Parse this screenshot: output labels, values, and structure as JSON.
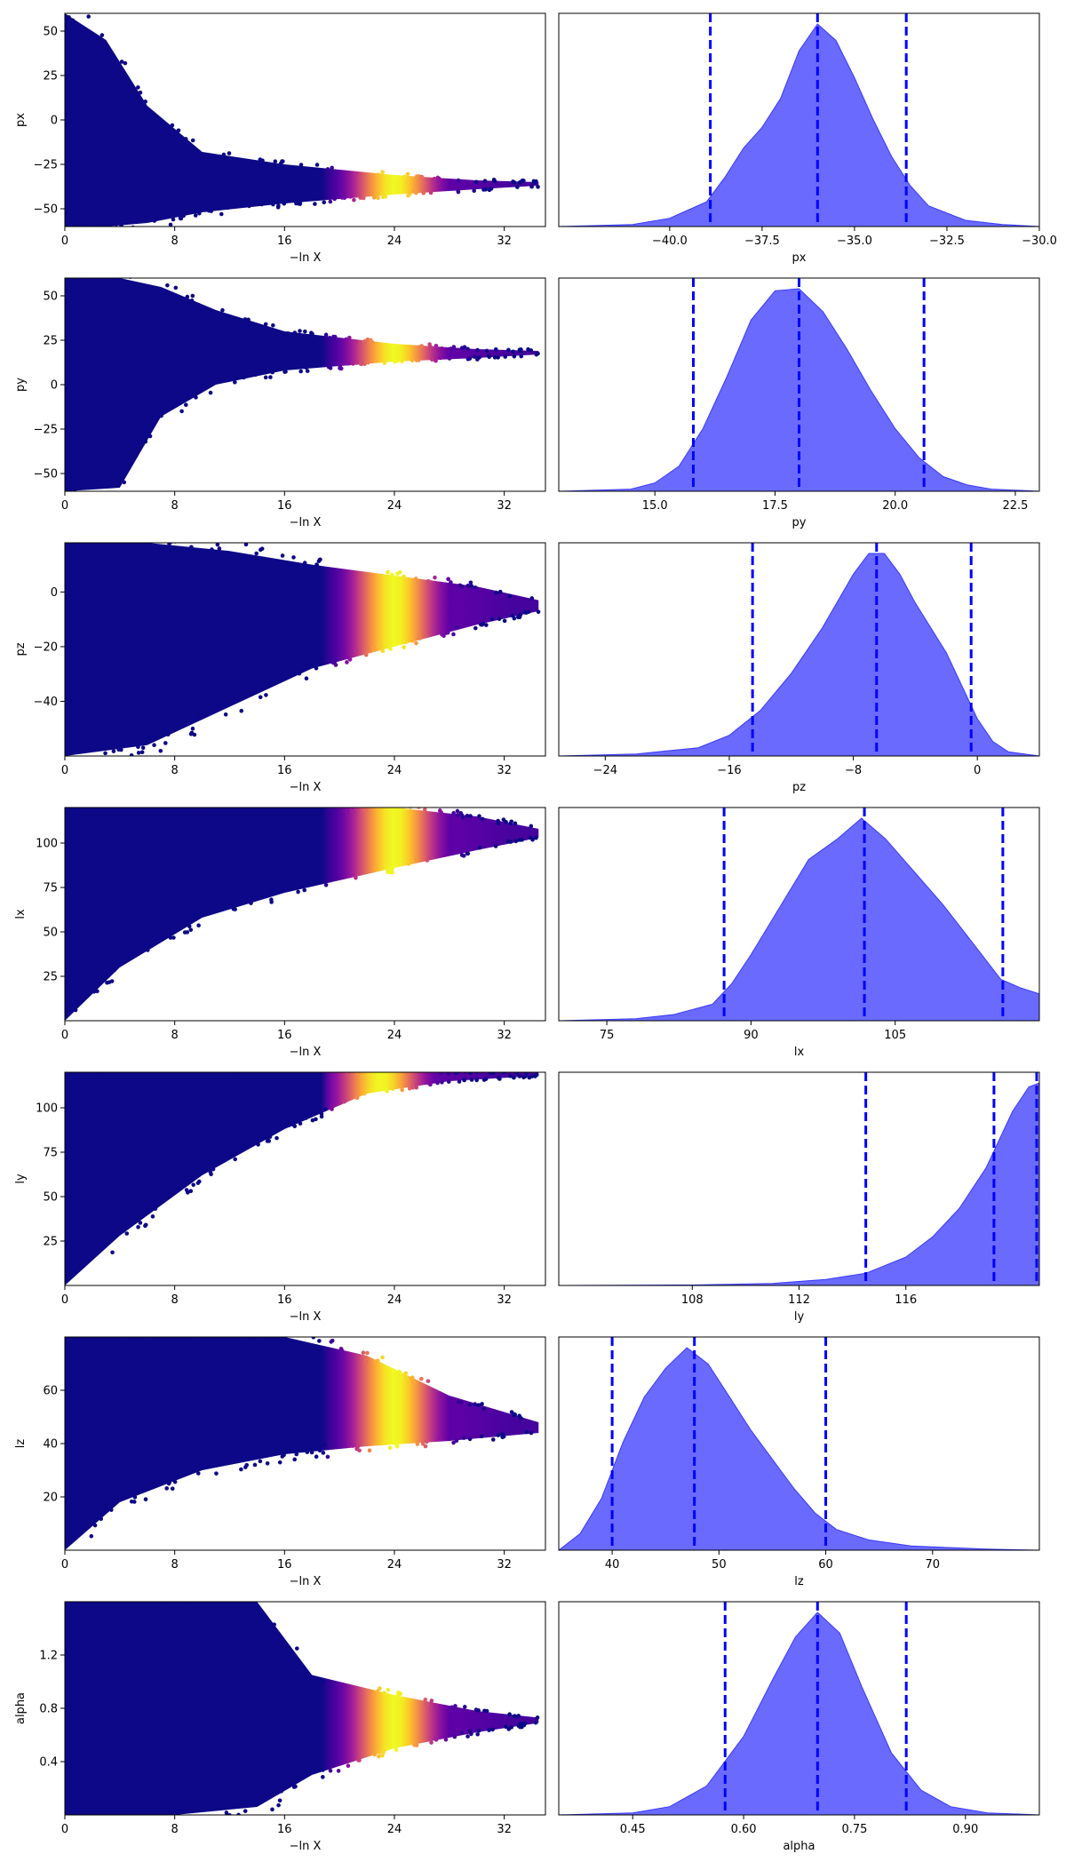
{
  "figure": {
    "shared_trace_xlabel": "−ln X",
    "trace_color_scale": [
      "#0d0887",
      "#5c01a6",
      "#9c179e",
      "#cc4778",
      "#ed7953",
      "#fdb42f",
      "#f0f921"
    ],
    "posterior_fill_color": "#5a5aff",
    "quantile_line_color": "#0000ff"
  },
  "chart_data": [
    {
      "type": "scatter",
      "parameter": "px",
      "panel": "trace",
      "xlabel": "−ln X",
      "ylabel": "px",
      "xlim": [
        0,
        35
      ],
      "ylim": [
        -60,
        60
      ],
      "xticks": [
        0,
        8,
        16,
        24,
        32
      ],
      "yticks": [
        -50,
        -25,
        0,
        25,
        50
      ],
      "envelope": [
        {
          "x": 0,
          "lo": -60,
          "hi": 60
        },
        {
          "x": 3,
          "lo": -60,
          "hi": 45
        },
        {
          "x": 6,
          "lo": -58,
          "hi": 8
        },
        {
          "x": 10,
          "lo": -52,
          "hi": -18
        },
        {
          "x": 16,
          "lo": -47,
          "hi": -25
        },
        {
          "x": 24,
          "lo": -42,
          "hi": -31
        },
        {
          "x": 30,
          "lo": -39,
          "hi": -34
        },
        {
          "x": 34.5,
          "lo": -37,
          "hi": -35
        }
      ],
      "bright_peak_x": 24
    },
    {
      "type": "area",
      "parameter": "px",
      "panel": "posterior",
      "xlabel": "px",
      "xlim": [
        -43,
        -30
      ],
      "xticks": [
        -40.0,
        -37.5,
        -35.0,
        -32.5,
        -30.0
      ],
      "xtick_labels": [
        "−40.0",
        "−37.5",
        "−35.0",
        "−32.5",
        "−30.0"
      ],
      "quantiles": [
        -38.9,
        -36.0,
        -33.6
      ],
      "density": [
        {
          "x": -43,
          "y": 0
        },
        {
          "x": -41,
          "y": 0.01
        },
        {
          "x": -40,
          "y": 0.04
        },
        {
          "x": -39,
          "y": 0.12
        },
        {
          "x": -38.5,
          "y": 0.24
        },
        {
          "x": -38,
          "y": 0.38
        },
        {
          "x": -37.5,
          "y": 0.48
        },
        {
          "x": -37,
          "y": 0.62
        },
        {
          "x": -36.5,
          "y": 0.85
        },
        {
          "x": -36,
          "y": 0.98
        },
        {
          "x": -35.5,
          "y": 0.9
        },
        {
          "x": -35,
          "y": 0.72
        },
        {
          "x": -34.5,
          "y": 0.52
        },
        {
          "x": -34,
          "y": 0.34
        },
        {
          "x": -33.5,
          "y": 0.2
        },
        {
          "x": -33,
          "y": 0.1
        },
        {
          "x": -32,
          "y": 0.03
        },
        {
          "x": -31,
          "y": 0.01
        },
        {
          "x": -30,
          "y": 0
        }
      ]
    },
    {
      "type": "scatter",
      "parameter": "py",
      "panel": "trace",
      "xlabel": "−ln X",
      "ylabel": "py",
      "xlim": [
        0,
        35
      ],
      "ylim": [
        -60,
        60
      ],
      "xticks": [
        0,
        8,
        16,
        24,
        32
      ],
      "yticks": [
        -50,
        -25,
        0,
        25,
        50
      ],
      "envelope": [
        {
          "x": 0,
          "lo": -60,
          "hi": 60
        },
        {
          "x": 4,
          "lo": -58,
          "hi": 60
        },
        {
          "x": 7,
          "lo": -18,
          "hi": 55
        },
        {
          "x": 11,
          "lo": 0,
          "hi": 42
        },
        {
          "x": 16,
          "lo": 8,
          "hi": 30
        },
        {
          "x": 24,
          "lo": 13,
          "hi": 23
        },
        {
          "x": 30,
          "lo": 15,
          "hi": 20
        },
        {
          "x": 34.5,
          "lo": 17,
          "hi": 19
        }
      ],
      "bright_peak_x": 24
    },
    {
      "type": "area",
      "parameter": "py",
      "panel": "posterior",
      "xlabel": "py",
      "xlim": [
        13,
        23
      ],
      "xticks": [
        15.0,
        17.5,
        20.0,
        22.5
      ],
      "xtick_labels": [
        "15.0",
        "17.5",
        "20.0",
        "22.5"
      ],
      "quantiles": [
        15.8,
        18.0,
        20.6
      ],
      "density": [
        {
          "x": 13,
          "y": 0
        },
        {
          "x": 14.5,
          "y": 0.01
        },
        {
          "x": 15,
          "y": 0.04
        },
        {
          "x": 15.5,
          "y": 0.12
        },
        {
          "x": 16,
          "y": 0.3
        },
        {
          "x": 16.5,
          "y": 0.55
        },
        {
          "x": 17,
          "y": 0.82
        },
        {
          "x": 17.5,
          "y": 0.96
        },
        {
          "x": 18,
          "y": 0.97
        },
        {
          "x": 18.5,
          "y": 0.86
        },
        {
          "x": 19,
          "y": 0.68
        },
        {
          "x": 19.5,
          "y": 0.48
        },
        {
          "x": 20,
          "y": 0.3
        },
        {
          "x": 20.5,
          "y": 0.16
        },
        {
          "x": 21,
          "y": 0.07
        },
        {
          "x": 21.5,
          "y": 0.03
        },
        {
          "x": 22,
          "y": 0.01
        },
        {
          "x": 23,
          "y": 0
        }
      ]
    },
    {
      "type": "scatter",
      "parameter": "pz",
      "panel": "trace",
      "xlabel": "−ln X",
      "ylabel": "pz",
      "xlim": [
        0,
        35
      ],
      "ylim": [
        -60,
        18
      ],
      "xticks": [
        0,
        8,
        16,
        24,
        32
      ],
      "yticks": [
        -40,
        -20,
        0
      ],
      "envelope": [
        {
          "x": 0,
          "lo": -60,
          "hi": 18
        },
        {
          "x": 6,
          "lo": -56,
          "hi": 18
        },
        {
          "x": 12,
          "lo": -42,
          "hi": 15
        },
        {
          "x": 18,
          "lo": -28,
          "hi": 10
        },
        {
          "x": 24,
          "lo": -20,
          "hi": 6
        },
        {
          "x": 30,
          "lo": -12,
          "hi": 2
        },
        {
          "x": 34.5,
          "lo": -7,
          "hi": -3
        }
      ],
      "bright_peak_x": 24
    },
    {
      "type": "area",
      "parameter": "pz",
      "panel": "posterior",
      "xlabel": "pz",
      "xlim": [
        -27,
        4
      ],
      "xticks": [
        -24,
        -16,
        -8,
        0
      ],
      "xtick_labels": [
        "−24",
        "−16",
        "−8",
        "0"
      ],
      "quantiles": [
        -14.5,
        -6.5,
        -0.4
      ],
      "density": [
        {
          "x": -27,
          "y": 0
        },
        {
          "x": -22,
          "y": 0.01
        },
        {
          "x": -18,
          "y": 0.04
        },
        {
          "x": -16,
          "y": 0.1
        },
        {
          "x": -14,
          "y": 0.22
        },
        {
          "x": -12,
          "y": 0.4
        },
        {
          "x": -10,
          "y": 0.62
        },
        {
          "x": -8,
          "y": 0.88
        },
        {
          "x": -7,
          "y": 0.98
        },
        {
          "x": -6,
          "y": 0.98
        },
        {
          "x": -5,
          "y": 0.88
        },
        {
          "x": -4,
          "y": 0.74
        },
        {
          "x": -2,
          "y": 0.5
        },
        {
          "x": 0,
          "y": 0.18
        },
        {
          "x": 1,
          "y": 0.07
        },
        {
          "x": 2,
          "y": 0.02
        },
        {
          "x": 4,
          "y": 0
        }
      ]
    },
    {
      "type": "scatter",
      "parameter": "lx",
      "panel": "trace",
      "xlabel": "−ln X",
      "ylabel": "lx",
      "xlim": [
        0,
        35
      ],
      "ylim": [
        0,
        120
      ],
      "xticks": [
        0,
        8,
        16,
        24,
        32
      ],
      "yticks": [
        25,
        50,
        75,
        100
      ],
      "envelope": [
        {
          "x": 0,
          "lo": 0,
          "hi": 120
        },
        {
          "x": 4,
          "lo": 30,
          "hi": 120
        },
        {
          "x": 10,
          "lo": 58,
          "hi": 120
        },
        {
          "x": 16,
          "lo": 72,
          "hi": 120
        },
        {
          "x": 24,
          "lo": 86,
          "hi": 120
        },
        {
          "x": 30,
          "lo": 96,
          "hi": 115
        },
        {
          "x": 34.5,
          "lo": 103,
          "hi": 108
        }
      ],
      "bright_peak_x": 24
    },
    {
      "type": "area",
      "parameter": "lx",
      "panel": "posterior",
      "xlabel": "lx",
      "xlim": [
        70,
        120
      ],
      "xticks": [
        75,
        90,
        105
      ],
      "xtick_labels": [
        "75",
        "90",
        "105"
      ],
      "quantiles": [
        87.2,
        101.8,
        116.2
      ],
      "density": [
        {
          "x": 70,
          "y": 0
        },
        {
          "x": 78,
          "y": 0.01
        },
        {
          "x": 82,
          "y": 0.03
        },
        {
          "x": 86,
          "y": 0.08
        },
        {
          "x": 88,
          "y": 0.18
        },
        {
          "x": 90,
          "y": 0.32
        },
        {
          "x": 93,
          "y": 0.55
        },
        {
          "x": 96,
          "y": 0.78
        },
        {
          "x": 99,
          "y": 0.88
        },
        {
          "x": 101.5,
          "y": 0.98
        },
        {
          "x": 104,
          "y": 0.88
        },
        {
          "x": 107,
          "y": 0.72
        },
        {
          "x": 110,
          "y": 0.56
        },
        {
          "x": 113,
          "y": 0.38
        },
        {
          "x": 116,
          "y": 0.2
        },
        {
          "x": 118,
          "y": 0.16
        },
        {
          "x": 120,
          "y": 0.13
        }
      ]
    },
    {
      "type": "scatter",
      "parameter": "ly",
      "panel": "trace",
      "xlabel": "−ln X",
      "ylabel": "ly",
      "xlim": [
        0,
        35
      ],
      "ylim": [
        0,
        120
      ],
      "xticks": [
        0,
        8,
        16,
        24,
        32
      ],
      "yticks": [
        25,
        50,
        75,
        100
      ],
      "envelope": [
        {
          "x": 0,
          "lo": 0,
          "hi": 120
        },
        {
          "x": 4,
          "lo": 28,
          "hi": 120
        },
        {
          "x": 10,
          "lo": 62,
          "hi": 120
        },
        {
          "x": 16,
          "lo": 88,
          "hi": 120
        },
        {
          "x": 22,
          "lo": 108,
          "hi": 120
        },
        {
          "x": 28,
          "lo": 115,
          "hi": 120
        },
        {
          "x": 34.5,
          "lo": 118,
          "hi": 120
        }
      ],
      "bright_peak_x": 23
    },
    {
      "type": "area",
      "parameter": "ly",
      "panel": "posterior",
      "xlabel": "ly",
      "xlim": [
        103,
        121
      ],
      "xticks": [
        108,
        112,
        116
      ],
      "xtick_labels": [
        "108",
        "112",
        "116"
      ],
      "quantiles": [
        114.5,
        119.3,
        120.9
      ],
      "density": [
        {
          "x": 103,
          "y": 0
        },
        {
          "x": 108,
          "y": 0.002
        },
        {
          "x": 111,
          "y": 0.01
        },
        {
          "x": 113,
          "y": 0.03
        },
        {
          "x": 114.5,
          "y": 0.06
        },
        {
          "x": 116,
          "y": 0.14
        },
        {
          "x": 117,
          "y": 0.24
        },
        {
          "x": 118,
          "y": 0.38
        },
        {
          "x": 119,
          "y": 0.58
        },
        {
          "x": 120,
          "y": 0.86
        },
        {
          "x": 120.6,
          "y": 0.98
        },
        {
          "x": 121,
          "y": 1.0
        }
      ]
    },
    {
      "type": "scatter",
      "parameter": "lz",
      "panel": "trace",
      "xlabel": "−ln X",
      "ylabel": "lz",
      "xlim": [
        0,
        35
      ],
      "ylim": [
        0,
        80
      ],
      "xticks": [
        0,
        8,
        16,
        24,
        32
      ],
      "yticks": [
        20,
        40,
        60
      ],
      "envelope": [
        {
          "x": 0,
          "lo": 0,
          "hi": 80
        },
        {
          "x": 4,
          "lo": 18,
          "hi": 80
        },
        {
          "x": 10,
          "lo": 30,
          "hi": 80
        },
        {
          "x": 16,
          "lo": 36,
          "hi": 80
        },
        {
          "x": 22,
          "lo": 39,
          "hi": 73
        },
        {
          "x": 28,
          "lo": 41,
          "hi": 58
        },
        {
          "x": 34.5,
          "lo": 44,
          "hi": 48
        }
      ],
      "bright_peak_x": 24
    },
    {
      "type": "area",
      "parameter": "lz",
      "panel": "posterior",
      "xlabel": "lz",
      "xlim": [
        35,
        80
      ],
      "xticks": [
        40,
        50,
        60,
        70
      ],
      "xtick_labels": [
        "40",
        "50",
        "60",
        "70"
      ],
      "quantiles": [
        40.0,
        47.7,
        60.0
      ],
      "density": [
        {
          "x": 35,
          "y": 0
        },
        {
          "x": 37,
          "y": 0.08
        },
        {
          "x": 39,
          "y": 0.25
        },
        {
          "x": 41,
          "y": 0.52
        },
        {
          "x": 43,
          "y": 0.74
        },
        {
          "x": 45,
          "y": 0.88
        },
        {
          "x": 47,
          "y": 0.98
        },
        {
          "x": 49,
          "y": 0.9
        },
        {
          "x": 51,
          "y": 0.74
        },
        {
          "x": 53,
          "y": 0.58
        },
        {
          "x": 55,
          "y": 0.44
        },
        {
          "x": 57,
          "y": 0.3
        },
        {
          "x": 59,
          "y": 0.18
        },
        {
          "x": 61,
          "y": 0.1
        },
        {
          "x": 64,
          "y": 0.05
        },
        {
          "x": 68,
          "y": 0.02
        },
        {
          "x": 75,
          "y": 0.005
        },
        {
          "x": 80,
          "y": 0
        }
      ]
    },
    {
      "type": "scatter",
      "parameter": "alpha",
      "panel": "trace",
      "xlabel": "−ln X",
      "ylabel": "alpha",
      "xlim": [
        0,
        35
      ],
      "ylim": [
        0,
        1.6
      ],
      "xticks": [
        0,
        8,
        16,
        24,
        32
      ],
      "yticks": [
        0.4,
        0.8,
        1.2
      ],
      "envelope": [
        {
          "x": 0,
          "lo": 0,
          "hi": 1.6
        },
        {
          "x": 8,
          "lo": 0,
          "hi": 1.6
        },
        {
          "x": 14,
          "lo": 0.06,
          "hi": 1.6
        },
        {
          "x": 18,
          "lo": 0.3,
          "hi": 1.05
        },
        {
          "x": 24,
          "lo": 0.5,
          "hi": 0.9
        },
        {
          "x": 30,
          "lo": 0.62,
          "hi": 0.78
        },
        {
          "x": 34.5,
          "lo": 0.69,
          "hi": 0.73
        }
      ],
      "bright_peak_x": 24
    },
    {
      "type": "area",
      "parameter": "alpha",
      "panel": "posterior",
      "xlabel": "alpha",
      "xlim": [
        0.35,
        1.0
      ],
      "xticks": [
        0.45,
        0.6,
        0.75,
        0.9
      ],
      "xtick_labels": [
        "0.45",
        "0.60",
        "0.75",
        "0.90"
      ],
      "quantiles": [
        0.575,
        0.7,
        0.82
      ],
      "density": [
        {
          "x": 0.35,
          "y": 0
        },
        {
          "x": 0.45,
          "y": 0.01
        },
        {
          "x": 0.5,
          "y": 0.04
        },
        {
          "x": 0.55,
          "y": 0.14
        },
        {
          "x": 0.6,
          "y": 0.38
        },
        {
          "x": 0.64,
          "y": 0.66
        },
        {
          "x": 0.67,
          "y": 0.86
        },
        {
          "x": 0.7,
          "y": 0.98
        },
        {
          "x": 0.73,
          "y": 0.88
        },
        {
          "x": 0.76,
          "y": 0.62
        },
        {
          "x": 0.8,
          "y": 0.3
        },
        {
          "x": 0.84,
          "y": 0.12
        },
        {
          "x": 0.88,
          "y": 0.04
        },
        {
          "x": 0.93,
          "y": 0.01
        },
        {
          "x": 1.0,
          "y": 0
        }
      ]
    }
  ]
}
